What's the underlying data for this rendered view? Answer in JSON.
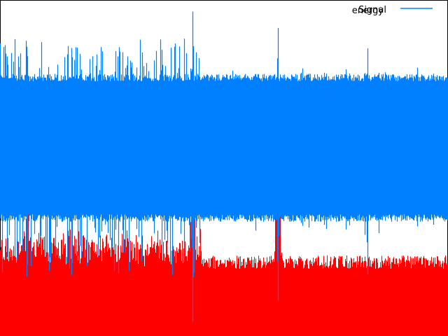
{
  "chart_data": {
    "type": "area",
    "title": "",
    "xlabel": "",
    "ylabel": "",
    "grid": false,
    "legend_position": "top-right",
    "legend_entries": [
      "Signal",
      "energy"
    ],
    "sample_count": 640,
    "series": [
      {
        "name": "energy",
        "color": "#ff0000",
        "style": "filled-from-bottom",
        "baseline": 0.22,
        "noise": 0.04,
        "bursts": [
          {
            "center": 0.06,
            "level": 0.55
          },
          {
            "center": 0.43,
            "level": 0.72
          },
          {
            "center": 0.62,
            "level": 0.78
          }
        ]
      },
      {
        "name": "Signal",
        "color": "#0080ff",
        "style": "symmetric-band",
        "center": 0.44,
        "half_width": 0.22,
        "early_segment_end": 0.45,
        "spikes": [
          {
            "position": 0.43,
            "height": 1.0
          },
          {
            "position": 0.62,
            "height": 0.88
          },
          {
            "position": 0.82,
            "height": 0.73
          },
          {
            "position": 0.06,
            "height": 0.81
          },
          {
            "position": 0.16,
            "height": 0.8
          }
        ]
      }
    ]
  }
}
